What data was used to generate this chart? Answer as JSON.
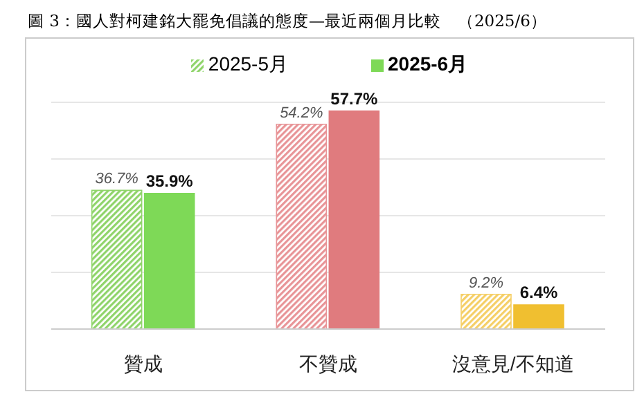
{
  "chart_data": {
    "type": "bar",
    "title": "圖 3：國人對柯建銘大罷免倡議的態度—最近兩個月比較　（2025/6）",
    "categories": [
      "贊成",
      "不贊成",
      "沒意見/不知道"
    ],
    "series": [
      {
        "name": "2025-5月",
        "color": "#8fd46a",
        "colors": [
          "#8fd46a",
          "#e89497",
          "#f5cf66"
        ],
        "values": [
          36.7,
          54.2,
          9.2
        ],
        "value_labels": [
          "36.7%",
          "54.2%",
          "9.2%"
        ]
      },
      {
        "name": "2025-6月",
        "color": "#7ed957",
        "colors": [
          "#7ed957",
          "#e07b7e",
          "#f0bf30"
        ],
        "values": [
          35.9,
          57.7,
          6.4
        ],
        "value_labels": [
          "35.9%",
          "57.7%",
          "6.4%"
        ]
      }
    ],
    "tick_labels": "x",
    "grid": "y",
    "legend": "top"
  }
}
